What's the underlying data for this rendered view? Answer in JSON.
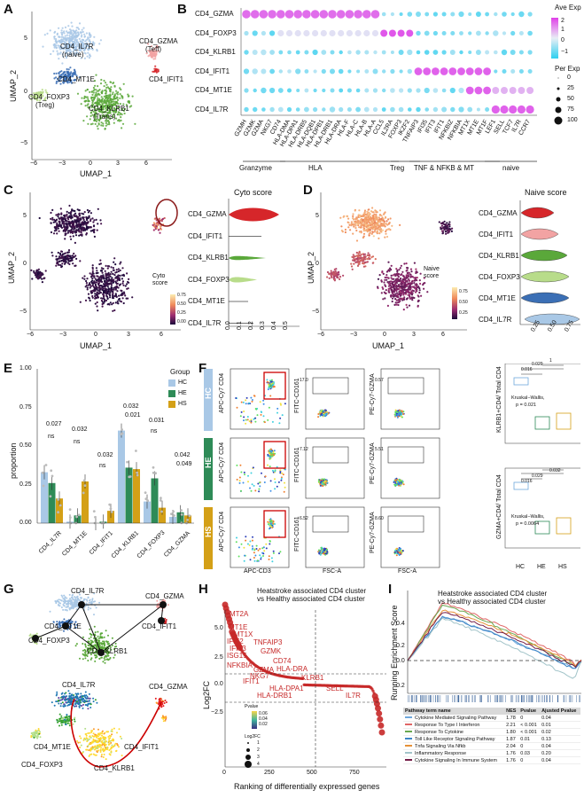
{
  "panels": {
    "A": "A",
    "B": "B",
    "C": "C",
    "D": "D",
    "E": "E",
    "F": "F",
    "G": "G",
    "H": "H",
    "I": "I"
  },
  "panel_a": {
    "xlabel": "UMAP_1",
    "ylabel": "UMAP_2",
    "xticks": [
      "−6",
      "−3",
      "0",
      "3",
      "6"
    ],
    "yticks": [
      "5",
      "0",
      "−5"
    ],
    "clusters": [
      {
        "label": "CD4_IL7R",
        "sub": "(naive)",
        "color": "#a9c8e6"
      },
      {
        "label": "CD4_MT1E",
        "sub": "",
        "color": "#3b6fb5"
      },
      {
        "label": "CD4_FOXP3",
        "sub": "(Treg)",
        "color": "#b8dc8a"
      },
      {
        "label": "CD4_KLRB1",
        "sub": "(Trans)",
        "color": "#5aa83a"
      },
      {
        "label": "CD4_GZMA",
        "sub": "(Teff)",
        "color": "#f2a3a3"
      },
      {
        "label": "CD4_IFIT1",
        "sub": "",
        "color": "#d6262a"
      }
    ]
  },
  "panel_b": {
    "rows": [
      "CD4_GZMA",
      "CD4_FOXP3",
      "CD4_KLRB1",
      "CD4_IFIT1",
      "CD4_MT1E",
      "CD4_IL7R"
    ],
    "genes": [
      "GZMH",
      "GZMK",
      "GZMA",
      "NKG7",
      "CD74",
      "HLA-DMA",
      "HLA-DPA1",
      "HLA-DRB5",
      "HLA-DQB1",
      "HLA-DPB1",
      "HLA-DRB1",
      "HLA-DRA",
      "HLA-F",
      "HLA-C",
      "HLA-B",
      "HLA-A",
      "CCL5",
      "IL2RA",
      "FOXP3",
      "IKZF2",
      "TNFAIP3",
      "IFI35",
      "IFIT3",
      "IFIT1",
      "NFKBIZ",
      "NFKBIA",
      "MT1X",
      "MT1E",
      "MT1F",
      "LEF1",
      "SELL",
      "TCF7",
      "IL7R",
      "CCR7"
    ],
    "groups": [
      "Granzyme",
      "HLA",
      "Treg",
      "TNF & NFKB & MT",
      "naive"
    ],
    "legend_title_1": "Ave Exp",
    "legend_ticks_1": [
      "2",
      "1",
      "0",
      "−1"
    ],
    "legend_title_2": "Per Exp",
    "legend_ticks_2": [
      "0",
      "25",
      "50",
      "75",
      "100"
    ],
    "colors": {
      "high": "#e040e8",
      "mid": "#d7e8f5",
      "low": "#2ed0f0"
    }
  },
  "panel_c": {
    "xlabel": "UMAP_1",
    "ylabel": "UMAP_2",
    "xticks": [
      "−6",
      "−3",
      "0",
      "3",
      "6"
    ],
    "yticks": [
      "5",
      "0",
      "−5"
    ],
    "legend_title": "Cyto\nscore",
    "legend_ticks": [
      "0.75",
      "0.50",
      "0.25",
      "0.00"
    ],
    "violin_title": "Cyto score",
    "violin_rows": [
      "CD4_GZMA",
      "CD4_IFIT1",
      "CD4_KLRB1",
      "CD4_FOXP3",
      "CD4_MT1E",
      "CD4_IL7R"
    ],
    "violin_xticks": [
      "0.0",
      "0.1",
      "0.2",
      "0.3",
      "0.4",
      "0.5"
    ]
  },
  "panel_d": {
    "xlabel": "UMAP_1",
    "ylabel": "UMAP_2",
    "xticks": [
      "−6",
      "−3",
      "0",
      "3",
      "6"
    ],
    "yticks": [
      "5",
      "0",
      "−5"
    ],
    "legend_title": "Naive\nscore",
    "legend_ticks": [
      "0.75",
      "0.50",
      "0.25"
    ],
    "violin_title": "Naive score",
    "violin_rows": [
      "CD4_GZMA",
      "CD4_IFIT1",
      "CD4_KLRB1",
      "CD4_FOXP3",
      "CD4_MT1E",
      "CD4_IL7R"
    ],
    "violin_colors": [
      "#d6262a",
      "#f2a3a3",
      "#5aa83a",
      "#b8dc8a",
      "#3b6fb5",
      "#a9c8e6"
    ],
    "violin_xticks": [
      "0.25",
      "0.50",
      "0.75"
    ]
  },
  "chart_data": {
    "type": "bar",
    "ylabel": "proportion",
    "ylim": [
      0,
      1.0
    ],
    "yticks": [
      "0.00",
      "0.25",
      "0.50",
      "0.75",
      "1.00"
    ],
    "categories": [
      "CD4_IL7R",
      "CD4_MT1E",
      "CD4_IFIT1",
      "CD4_KLRB1",
      "CD4_FOXP3",
      "CD4_GZMA"
    ],
    "legend_title": "Group",
    "series": [
      {
        "name": "HC",
        "color": "#a9c8e6",
        "values": [
          0.33,
          0.01,
          0.0,
          0.6,
          0.14,
          0.04
        ]
      },
      {
        "name": "HE",
        "color": "#2e8b57",
        "values": [
          0.26,
          0.05,
          0.01,
          0.36,
          0.29,
          0.07
        ]
      },
      {
        "name": "HS",
        "color": "#d4a017",
        "values": [
          0.16,
          0.27,
          0.08,
          0.35,
          0.1,
          0.05
        ]
      }
    ],
    "significance": [
      {
        "category": "CD4_IL7R",
        "labels": [
          "0.027",
          "ns"
        ]
      },
      {
        "category": "CD4_MT1E",
        "labels": [
          "0.032",
          "ns"
        ]
      },
      {
        "category": "CD4_IFIT1",
        "labels": [
          "0.032",
          "ns"
        ]
      },
      {
        "category": "CD4_KLRB1",
        "labels": [
          "0.032",
          "0.021"
        ]
      },
      {
        "category": "CD4_FOXP3",
        "labels": [
          "0.031",
          "ns"
        ]
      },
      {
        "category": "CD4_GZMA",
        "labels": [
          "0.042",
          "0.049"
        ]
      }
    ]
  },
  "panel_f": {
    "row_labels": [
      "HC",
      "HE",
      "HS"
    ],
    "row_colors": [
      "#a9c8e6",
      "#2e8b57",
      "#d4a017"
    ],
    "col1_y": "APC-Cy7 CD4",
    "col1_x": "APC-CD3",
    "col2_y": "FITC-CD161",
    "col2_x": "FSC-A",
    "col3_y": "PE-Cy7-GZMA",
    "col3_x": "FSC-A",
    "col2_vals": [
      "17.0",
      "7.12",
      "6.52"
    ],
    "col3_vals": [
      "0.57",
      "5.51",
      "8.60"
    ],
    "box1": {
      "ylabel": "KLRB1+CD4/ Total CD4",
      "test": "Kruskal−Wallis,",
      "p": "p = 0.021",
      "pvals": [
        "0.016",
        "0.029",
        "1"
      ],
      "xticks": [
        "HC",
        "HE",
        "HS"
      ]
    },
    "box2": {
      "ylabel": "GZMA+CD4/ Total CD4",
      "test": "Kruskal−Wallis,",
      "p": "p = 0.0064",
      "pvals": [
        "0.016",
        "0.029",
        "0.032"
      ],
      "xticks": [
        "HC",
        "HE",
        "HS"
      ]
    }
  },
  "panel_g": {
    "top_labels": [
      "CD4_IL7R",
      "CD4_GZMA",
      "CD4_MT1E",
      "CD4_IFIT1",
      "CD4_FOXP3",
      "CD4_KLRB1"
    ],
    "bottom_labels": [
      "CD4_IL7R",
      "CD4_GZMA",
      "CD4_MT1E",
      "CD4_IFIT1",
      "CD4_FOXP3",
      "CD4_KLRB1"
    ]
  },
  "panel_h": {
    "title_1": "Heatstroke associated CD4 cluster",
    "title_2": "vs Healthy associated CD4 cluster",
    "xlabel": "Ranking of differentially expressed genes",
    "ylabel": "Log2FC",
    "xticks": [
      "0",
      "250",
      "500",
      "750"
    ],
    "yticks": [
      "5.0",
      "2.5",
      "0.0",
      "−2.5"
    ],
    "legend_title_1": "Pvalue",
    "legend_title_2": "Log2FC",
    "legend_ticks_1": [
      "0.06",
      "0.04",
      "0.02"
    ],
    "legend_ticks_2": [
      "1",
      "2",
      "3",
      "4"
    ],
    "genes": [
      "MT2A",
      "MT1E",
      "MT1X",
      "IFIT2",
      "TNFAIP3",
      "IFIT3",
      "GZMK",
      "CD74",
      "ISG15",
      "NFKBIA",
      "GZMA",
      "HLA-DRA",
      "NKG7",
      "KLRB1",
      "IFIT1",
      "HLA-DPA1",
      "HLA-DRB1",
      "SELL",
      "IL7R"
    ]
  },
  "panel_i": {
    "title_1": "Heatstroke associated CD4 cluster",
    "title_2": "vs Healthy associated CD4 cluster",
    "ylabel": "Running Enrichment Score",
    "yticks": [
      "0.4",
      "0.2",
      "0.0",
      "−0.2"
    ],
    "table_headers": [
      "Pathway term name",
      "NES",
      "Pvalue",
      "Ajusted Pvalue"
    ],
    "table_rows": [
      {
        "name": "Cytokine Mediated Signaling Pathway",
        "nes": "1.78",
        "p": "0",
        "padj": "0.04",
        "color": "#6fa8dc"
      },
      {
        "name": "Response To Type I Interferon",
        "nes": "2.21",
        "p": "< 0.001",
        "padj": "0.01",
        "color": "#e06666"
      },
      {
        "name": "Response To Cytokine",
        "nes": "1.80",
        "p": "< 0.001",
        "padj": "0.02",
        "color": "#6aa84f"
      },
      {
        "name": "Toll Like Receptor Signaling Pathway",
        "nes": "1.87",
        "p": "0.01",
        "padj": "0.13",
        "color": "#3d85c6"
      },
      {
        "name": "Tnfa Signaling Via Nfkb",
        "nes": "2.04",
        "p": "0",
        "padj": "0.04",
        "color": "#e69138"
      },
      {
        "name": "Inflammatory Response",
        "nes": "1.76",
        "p": "0.03",
        "padj": "0.20",
        "color": "#a2c4c9"
      },
      {
        "name": "Cytokine Signaling In Immune System",
        "nes": "1.76",
        "p": "0",
        "padj": "0.04",
        "color": "#741b47"
      }
    ]
  }
}
